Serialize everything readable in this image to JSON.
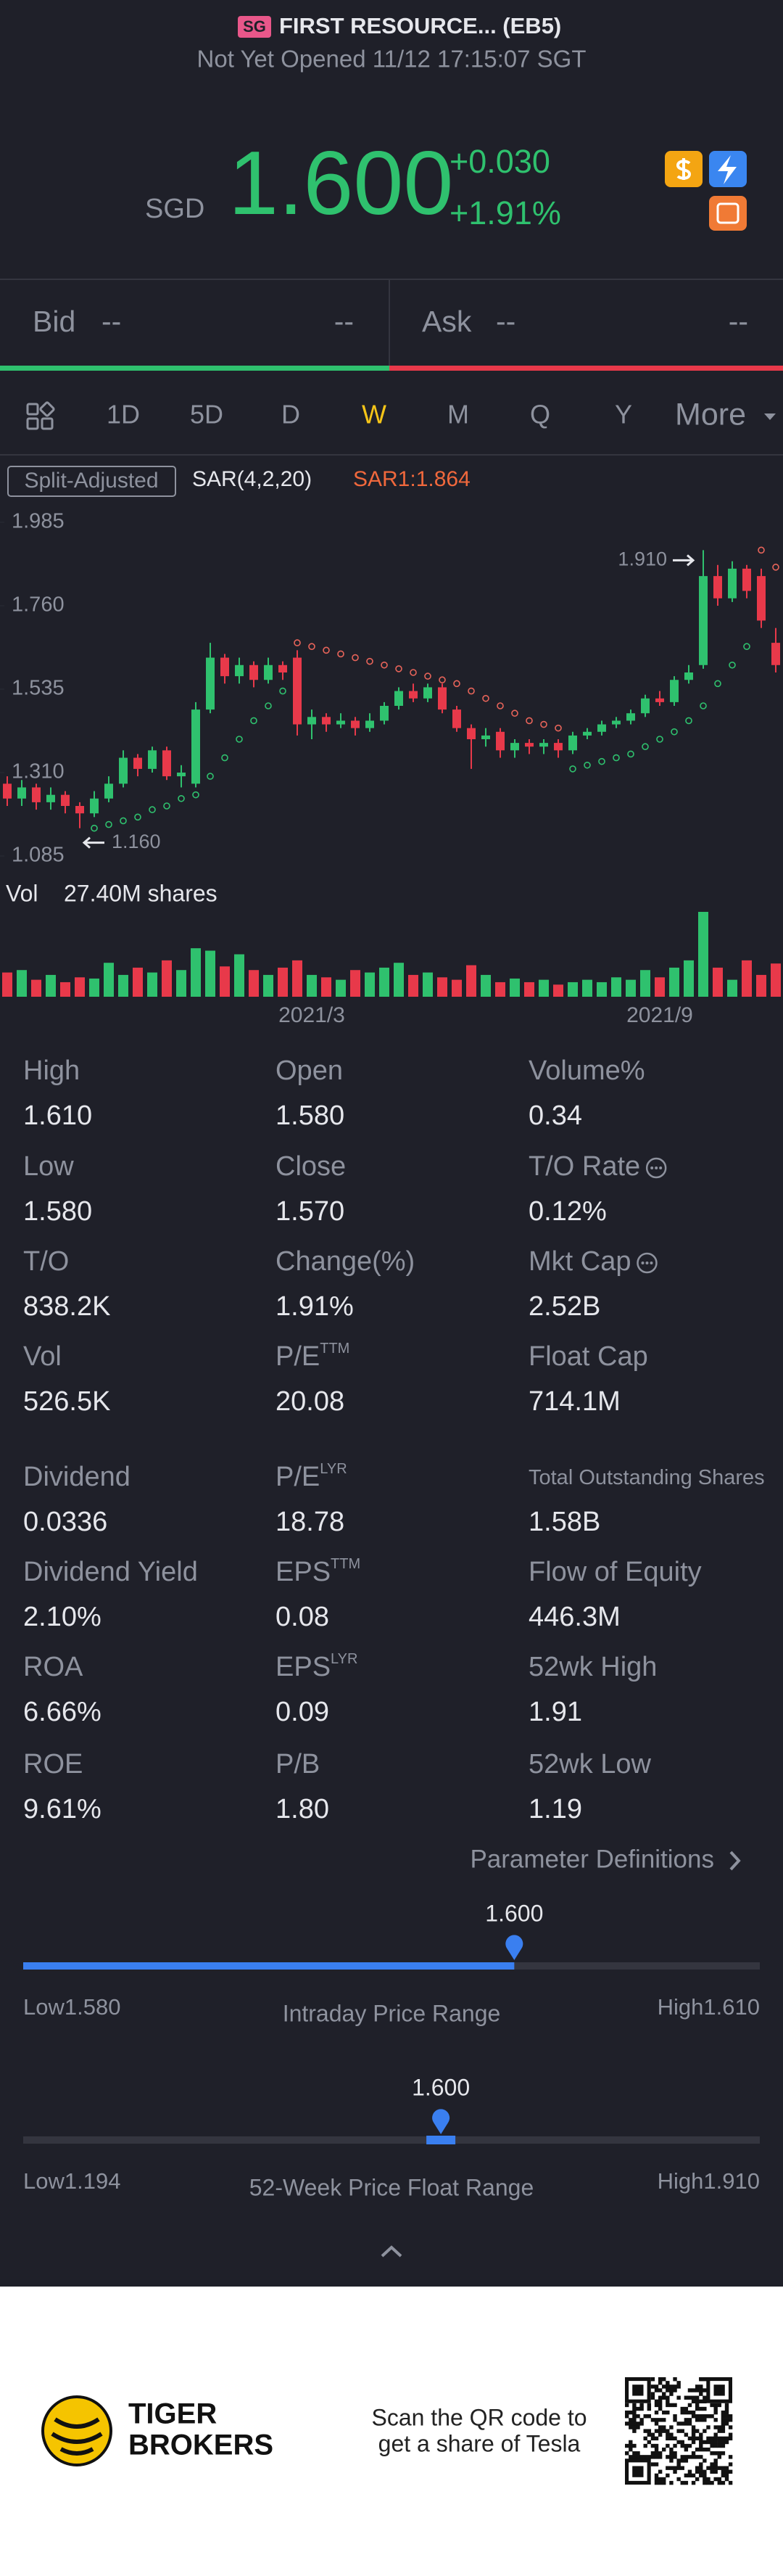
{
  "header": {
    "badge": "SG",
    "title": "FIRST RESOURCE... (EB5)",
    "status": "Not Yet Opened 11/12 17:15:07 SGT"
  },
  "quote": {
    "currency": "SGD",
    "price": "1.600",
    "change": "+0.030",
    "change_pct": "+1.91%"
  },
  "bid_ask": {
    "bid_label": "Bid",
    "bid_price": "--",
    "bid_size": "--",
    "ask_label": "Ask",
    "ask_price": "--",
    "ask_size": "--"
  },
  "tabs": {
    "items": [
      "1D",
      "5D",
      "D",
      "W",
      "M",
      "Q",
      "Y",
      "More"
    ],
    "active": 3
  },
  "chart_data": {
    "type": "candlestick",
    "adjust_label": "Split-Adjusted",
    "indicator": "SAR(4,2,20)",
    "indicator_value": "SAR1:1.864",
    "up_color": "#2fc16e",
    "down_color": "#e8394a",
    "ylim": [
      1.085,
      1.985
    ],
    "yticks": [
      1.985,
      {
        "value": 1.76,
        "label": "1.760"
      },
      1.535,
      {
        "value": 1.31,
        "label": "1.310"
      },
      1.085
    ],
    "categories": [
      null,
      null,
      null,
      null,
      null,
      null,
      null,
      null,
      null,
      null,
      null,
      null,
      null,
      null,
      null,
      null,
      null,
      null,
      null,
      null,
      null,
      "2021/3",
      null,
      null,
      null,
      null,
      null,
      null,
      null,
      null,
      null,
      null,
      null,
      null,
      null,
      null,
      null,
      null,
      null,
      null,
      null,
      null,
      null,
      null,
      null,
      "2021/9",
      null,
      null,
      null,
      null,
      null,
      null,
      null,
      null
    ],
    "candles": [
      [
        1.28,
        1.3,
        1.22,
        1.24
      ],
      [
        1.24,
        1.29,
        1.22,
        1.27
      ],
      [
        1.27,
        1.28,
        1.21,
        1.23
      ],
      [
        1.23,
        1.27,
        1.21,
        1.25
      ],
      [
        1.25,
        1.26,
        1.2,
        1.22
      ],
      [
        1.22,
        1.23,
        1.16,
        1.2
      ],
      [
        1.2,
        1.26,
        1.19,
        1.24
      ],
      [
        1.24,
        1.3,
        1.23,
        1.28
      ],
      [
        1.28,
        1.37,
        1.27,
        1.35
      ],
      [
        1.35,
        1.36,
        1.3,
        1.32
      ],
      [
        1.32,
        1.38,
        1.31,
        1.37
      ],
      [
        1.37,
        1.38,
        1.29,
        1.3
      ],
      [
        1.3,
        1.33,
        1.27,
        1.31
      ],
      [
        1.28,
        1.5,
        1.27,
        1.48
      ],
      [
        1.48,
        1.66,
        1.47,
        1.62
      ],
      [
        1.62,
        1.63,
        1.55,
        1.57
      ],
      [
        1.57,
        1.62,
        1.55,
        1.6
      ],
      [
        1.6,
        1.61,
        1.54,
        1.56
      ],
      [
        1.56,
        1.62,
        1.55,
        1.6
      ],
      [
        1.6,
        1.61,
        1.56,
        1.58
      ],
      [
        1.62,
        1.64,
        1.41,
        1.44
      ],
      [
        1.44,
        1.48,
        1.4,
        1.46
      ],
      [
        1.46,
        1.47,
        1.42,
        1.44
      ],
      [
        1.44,
        1.47,
        1.43,
        1.45
      ],
      [
        1.45,
        1.46,
        1.41,
        1.43
      ],
      [
        1.43,
        1.47,
        1.42,
        1.45
      ],
      [
        1.45,
        1.5,
        1.44,
        1.49
      ],
      [
        1.49,
        1.54,
        1.48,
        1.53
      ],
      [
        1.53,
        1.55,
        1.5,
        1.51
      ],
      [
        1.51,
        1.55,
        1.5,
        1.54
      ],
      [
        1.54,
        1.55,
        1.47,
        1.48
      ],
      [
        1.48,
        1.49,
        1.42,
        1.43
      ],
      [
        1.43,
        1.44,
        1.32,
        1.4
      ],
      [
        1.4,
        1.43,
        1.38,
        1.41
      ],
      [
        1.42,
        1.43,
        1.35,
        1.37
      ],
      [
        1.37,
        1.4,
        1.35,
        1.39
      ],
      [
        1.39,
        1.4,
        1.36,
        1.38
      ],
      [
        1.38,
        1.4,
        1.36,
        1.39
      ],
      [
        1.39,
        1.4,
        1.35,
        1.37
      ],
      [
        1.37,
        1.42,
        1.36,
        1.41
      ],
      [
        1.41,
        1.43,
        1.4,
        1.42
      ],
      [
        1.42,
        1.45,
        1.41,
        1.44
      ],
      [
        1.44,
        1.46,
        1.43,
        1.45
      ],
      [
        1.45,
        1.48,
        1.44,
        1.47
      ],
      [
        1.47,
        1.52,
        1.46,
        1.51
      ],
      [
        1.51,
        1.53,
        1.49,
        1.5
      ],
      [
        1.5,
        1.57,
        1.49,
        1.56
      ],
      [
        1.56,
        1.6,
        1.55,
        1.58
      ],
      [
        1.6,
        1.91,
        1.59,
        1.84
      ],
      [
        1.84,
        1.87,
        1.76,
        1.78
      ],
      [
        1.78,
        1.88,
        1.77,
        1.86
      ],
      [
        1.86,
        1.87,
        1.78,
        1.8
      ],
      [
        1.84,
        1.86,
        1.7,
        1.72
      ],
      [
        1.66,
        1.7,
        1.58,
        1.6
      ]
    ],
    "sar": [
      null,
      null,
      null,
      null,
      null,
      null,
      1.16,
      1.17,
      1.18,
      1.19,
      1.21,
      1.22,
      1.24,
      1.25,
      1.3,
      1.35,
      1.4,
      1.45,
      1.49,
      1.53,
      1.66,
      1.65,
      1.64,
      1.63,
      1.62,
      1.61,
      1.6,
      1.59,
      1.58,
      1.57,
      1.56,
      1.55,
      1.53,
      1.51,
      1.49,
      1.47,
      1.45,
      1.44,
      1.43,
      1.32,
      1.33,
      1.34,
      1.35,
      1.36,
      1.38,
      1.4,
      1.42,
      1.45,
      1.49,
      1.55,
      1.6,
      1.65,
      1.91,
      1.864
    ],
    "annotations": [
      {
        "value": 1.91,
        "label": "1.910"
      },
      {
        "value": 1.16,
        "label": "1.160"
      }
    ],
    "volume_label": "Vol",
    "volume_value": "27.40M shares",
    "volumes": [
      20,
      22,
      14,
      18,
      12,
      16,
      15,
      28,
      18,
      24,
      20,
      30,
      22,
      40,
      38,
      25,
      35,
      22,
      18,
      24,
      30,
      18,
      16,
      14,
      22,
      20,
      24,
      28,
      18,
      20,
      16,
      14,
      26,
      18,
      12,
      15,
      12,
      14,
      10,
      12,
      14,
      12,
      16,
      14,
      22,
      16,
      24,
      30,
      70,
      24,
      14,
      30,
      18,
      27.4
    ]
  },
  "stats": [
    [
      {
        "label": "High",
        "value": "1.610"
      },
      {
        "label": "Open",
        "value": "1.580"
      },
      {
        "label": "Volume%",
        "value": "0.34"
      }
    ],
    [
      {
        "label": "Low",
        "value": "1.580"
      },
      {
        "label": "Close",
        "value": "1.570"
      },
      {
        "label": "T/O Rate",
        "value": "0.12%",
        "info": true
      }
    ],
    [
      {
        "label": "T/O",
        "value": "838.2K"
      },
      {
        "label": "Change(%)",
        "value": "1.91%"
      },
      {
        "label": "Mkt Cap",
        "value": "2.52B",
        "info": true
      }
    ],
    [
      {
        "label": "Vol",
        "value": "526.5K"
      },
      {
        "label": "P/E",
        "sup": "TTM",
        "value": "20.08"
      },
      {
        "label": "Float Cap",
        "value": "714.1M"
      }
    ],
    [
      {
        "label": "Dividend",
        "value": "0.0336"
      },
      {
        "label": "P/E",
        "sup": "LYR",
        "value": "18.78"
      },
      {
        "label": "Total Outstanding Shares",
        "value": "1.58B"
      }
    ],
    [
      {
        "label": "Dividend Yield",
        "value": "2.10%"
      },
      {
        "label": "EPS",
        "sup": "TTM",
        "value": "0.08"
      },
      {
        "label": "Flow of Equity",
        "value": "446.3M"
      }
    ],
    [
      {
        "label": "ROA",
        "value": "6.66%"
      },
      {
        "label": "EPS",
        "sup": "LYR",
        "value": "0.09"
      },
      {
        "label": "52wk High",
        "value": "1.91"
      }
    ],
    [
      {
        "label": "ROE",
        "value": "9.61%"
      },
      {
        "label": "P/B",
        "value": "1.80"
      },
      {
        "label": "52wk Low",
        "value": "1.19"
      }
    ]
  ],
  "param_link": "Parameter Definitions",
  "ranges": [
    {
      "label": "Intraday Price Range",
      "current": {
        "value": 1.6,
        "label": "1.600"
      },
      "low_label": "Low",
      "low": {
        "value": 1.58,
        "label": "1.580"
      },
      "high_label": "High",
      "high": {
        "value": 1.61,
        "label": "1.610"
      },
      "style": "fill"
    },
    {
      "label": "52-Week Price Float Range",
      "current": {
        "value": 1.6,
        "label": "1.600"
      },
      "low_label": "Low",
      "low": {
        "value": 1.194,
        "label": "1.194"
      },
      "high_label": "High",
      "high": {
        "value": 1.91,
        "label": "1.910"
      },
      "style": "marker"
    }
  ],
  "footer": {
    "brand_line1": "TIGER",
    "brand_line2": "BROKERS",
    "promo_line1": "Scan the QR code to",
    "promo_line2": "get a share of Tesla"
  }
}
